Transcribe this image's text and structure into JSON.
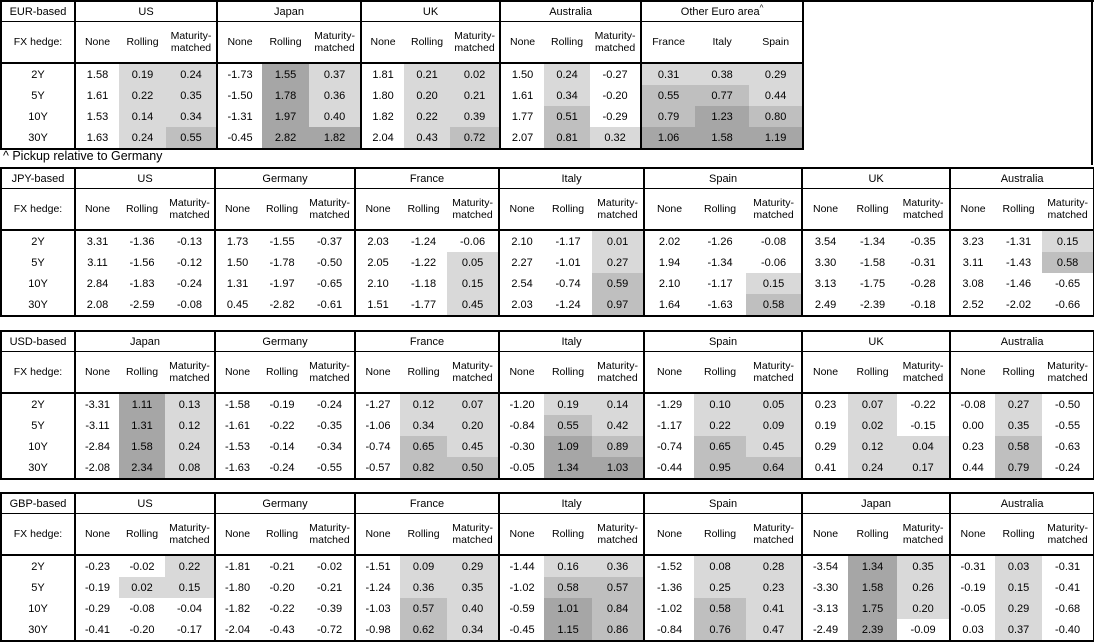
{
  "note": "^ Pickup relative to Germany",
  "hedge_label": "FX hedge:",
  "tenors": [
    "2Y",
    "5Y",
    "10Y",
    "30Y"
  ],
  "hedge_cols": [
    "None",
    "Rolling",
    "Maturity-matched"
  ],
  "colors": {
    "shade_light": "#d9d9d9",
    "shade_medium": "#bfbfbf",
    "shade_dark": "#a6a6a6",
    "border": "#000000"
  },
  "tables": [
    {
      "base": "EUR-based",
      "groups": [
        {
          "name": "US",
          "rows": [
            [
              "1.58",
              "0.19",
              "0.24"
            ],
            [
              "1.61",
              "0.22",
              "0.35"
            ],
            [
              "1.53",
              "0.14",
              "0.34"
            ],
            [
              "1.63",
              "0.24",
              "0.55"
            ]
          ]
        },
        {
          "name": "Japan",
          "rows": [
            [
              "-1.73",
              "1.55",
              "0.37"
            ],
            [
              "-1.50",
              "1.78",
              "0.36"
            ],
            [
              "-1.31",
              "1.97",
              "0.40"
            ],
            [
              "-0.45",
              "2.82",
              "1.82"
            ]
          ]
        },
        {
          "name": "UK",
          "rows": [
            [
              "1.81",
              "0.21",
              "0.02"
            ],
            [
              "1.80",
              "0.20",
              "0.21"
            ],
            [
              "1.82",
              "0.22",
              "0.39"
            ],
            [
              "2.04",
              "0.43",
              "0.72"
            ]
          ]
        },
        {
          "name": "Australia",
          "rows": [
            [
              "1.50",
              "0.24",
              "-0.27"
            ],
            [
              "1.61",
              "0.34",
              "-0.20"
            ],
            [
              "1.77",
              "0.51",
              "-0.29"
            ],
            [
              "2.07",
              "0.81",
              "0.32"
            ]
          ]
        },
        {
          "name": "Other Euro area",
          "sup": "^",
          "cols": [
            "France",
            "Italy",
            "Spain"
          ],
          "shade_all": true,
          "rows": [
            [
              "0.31",
              "0.38",
              "0.29"
            ],
            [
              "0.55",
              "0.77",
              "0.44"
            ],
            [
              "0.79",
              "1.23",
              "0.80"
            ],
            [
              "1.06",
              "1.58",
              "1.19"
            ]
          ]
        }
      ]
    },
    {
      "base": "JPY-based",
      "groups": [
        {
          "name": "US",
          "rows": [
            [
              "3.31",
              "-1.36",
              "-0.13"
            ],
            [
              "3.11",
              "-1.56",
              "-0.12"
            ],
            [
              "2.84",
              "-1.83",
              "-0.24"
            ],
            [
              "2.08",
              "-2.59",
              "-0.08"
            ]
          ]
        },
        {
          "name": "Germany",
          "rows": [
            [
              "1.73",
              "-1.55",
              "-0.37"
            ],
            [
              "1.50",
              "-1.78",
              "-0.50"
            ],
            [
              "1.31",
              "-1.97",
              "-0.65"
            ],
            [
              "0.45",
              "-2.82",
              "-0.61"
            ]
          ]
        },
        {
          "name": "France",
          "rows": [
            [
              "2.03",
              "-1.24",
              "-0.06"
            ],
            [
              "2.05",
              "-1.22",
              "0.05"
            ],
            [
              "2.10",
              "-1.18",
              "0.15"
            ],
            [
              "1.51",
              "-1.77",
              "0.45"
            ]
          ]
        },
        {
          "name": "Italy",
          "rows": [
            [
              "2.10",
              "-1.17",
              "0.01"
            ],
            [
              "2.27",
              "-1.01",
              "0.27"
            ],
            [
              "2.54",
              "-0.74",
              "0.59"
            ],
            [
              "2.03",
              "-1.24",
              "0.97"
            ]
          ]
        },
        {
          "name": "Spain",
          "rows": [
            [
              "2.02",
              "-1.26",
              "-0.08"
            ],
            [
              "1.94",
              "-1.34",
              "-0.06"
            ],
            [
              "2.10",
              "-1.17",
              "0.15"
            ],
            [
              "1.64",
              "-1.63",
              "0.58"
            ]
          ]
        },
        {
          "name": "UK",
          "rows": [
            [
              "3.54",
              "-1.34",
              "-0.35"
            ],
            [
              "3.30",
              "-1.58",
              "-0.31"
            ],
            [
              "3.13",
              "-1.75",
              "-0.28"
            ],
            [
              "2.49",
              "-2.39",
              "-0.18"
            ]
          ]
        },
        {
          "name": "Australia",
          "rows": [
            [
              "3.23",
              "-1.31",
              "0.15"
            ],
            [
              "3.11",
              "-1.43",
              "0.58"
            ],
            [
              "3.08",
              "-1.46",
              "-0.65"
            ],
            [
              "2.52",
              "-2.02",
              "-0.66"
            ]
          ]
        }
      ]
    },
    {
      "base": "USD-based",
      "groups": [
        {
          "name": "Japan",
          "rows": [
            [
              "-3.31",
              "1.11",
              "0.13"
            ],
            [
              "-3.11",
              "1.31",
              "0.12"
            ],
            [
              "-2.84",
              "1.58",
              "0.24"
            ],
            [
              "-2.08",
              "2.34",
              "0.08"
            ]
          ]
        },
        {
          "name": "Germany",
          "rows": [
            [
              "-1.58",
              "-0.19",
              "-0.24"
            ],
            [
              "-1.61",
              "-0.22",
              "-0.35"
            ],
            [
              "-1.53",
              "-0.14",
              "-0.34"
            ],
            [
              "-1.63",
              "-0.24",
              "-0.55"
            ]
          ]
        },
        {
          "name": "France",
          "rows": [
            [
              "-1.27",
              "0.12",
              "0.07"
            ],
            [
              "-1.06",
              "0.34",
              "0.20"
            ],
            [
              "-0.74",
              "0.65",
              "0.45"
            ],
            [
              "-0.57",
              "0.82",
              "0.50"
            ]
          ]
        },
        {
          "name": "Italy",
          "rows": [
            [
              "-1.20",
              "0.19",
              "0.14"
            ],
            [
              "-0.84",
              "0.55",
              "0.42"
            ],
            [
              "-0.30",
              "1.09",
              "0.89"
            ],
            [
              "-0.05",
              "1.34",
              "1.03"
            ]
          ]
        },
        {
          "name": "Spain",
          "rows": [
            [
              "-1.29",
              "0.10",
              "0.05"
            ],
            [
              "-1.17",
              "0.22",
              "0.09"
            ],
            [
              "-0.74",
              "0.65",
              "0.45"
            ],
            [
              "-0.44",
              "0.95",
              "0.64"
            ]
          ]
        },
        {
          "name": "UK",
          "rows": [
            [
              "0.23",
              "0.07",
              "-0.22"
            ],
            [
              "0.19",
              "0.02",
              "-0.15"
            ],
            [
              "0.29",
              "0.12",
              "0.04"
            ],
            [
              "0.41",
              "0.24",
              "0.17"
            ]
          ]
        },
        {
          "name": "Australia",
          "rows": [
            [
              "-0.08",
              "0.27",
              "-0.50"
            ],
            [
              "0.00",
              "0.35",
              "-0.55"
            ],
            [
              "0.23",
              "0.58",
              "-0.63"
            ],
            [
              "0.44",
              "0.79",
              "-0.24"
            ]
          ]
        }
      ]
    },
    {
      "base": "GBP-based",
      "groups": [
        {
          "name": "US",
          "rows": [
            [
              "-0.23",
              "-0.02",
              "0.22"
            ],
            [
              "-0.19",
              "0.02",
              "0.15"
            ],
            [
              "-0.29",
              "-0.08",
              "-0.04"
            ],
            [
              "-0.41",
              "-0.20",
              "-0.17"
            ]
          ]
        },
        {
          "name": "Germany",
          "rows": [
            [
              "-1.81",
              "-0.21",
              "-0.02"
            ],
            [
              "-1.80",
              "-0.20",
              "-0.21"
            ],
            [
              "-1.82",
              "-0.22",
              "-0.39"
            ],
            [
              "-2.04",
              "-0.43",
              "-0.72"
            ]
          ]
        },
        {
          "name": "France",
          "rows": [
            [
              "-1.51",
              "0.09",
              "0.29"
            ],
            [
              "-1.24",
              "0.36",
              "0.35"
            ],
            [
              "-1.03",
              "0.57",
              "0.40"
            ],
            [
              "-0.98",
              "0.62",
              "0.34"
            ]
          ]
        },
        {
          "name": "Italy",
          "rows": [
            [
              "-1.44",
              "0.16",
              "0.36"
            ],
            [
              "-1.02",
              "0.58",
              "0.57"
            ],
            [
              "-0.59",
              "1.01",
              "0.84"
            ],
            [
              "-0.45",
              "1.15",
              "0.86"
            ]
          ]
        },
        {
          "name": "Spain",
          "rows": [
            [
              "-1.52",
              "0.08",
              "0.28"
            ],
            [
              "-1.36",
              "0.25",
              "0.23"
            ],
            [
              "-1.02",
              "0.58",
              "0.41"
            ],
            [
              "-0.84",
              "0.76",
              "0.47"
            ]
          ]
        },
        {
          "name": "Japan",
          "rows": [
            [
              "-3.54",
              "1.34",
              "0.35"
            ],
            [
              "-3.30",
              "1.58",
              "0.26"
            ],
            [
              "-3.13",
              "1.75",
              "0.20"
            ],
            [
              "-2.49",
              "2.39",
              "-0.09"
            ]
          ]
        },
        {
          "name": "Australia",
          "rows": [
            [
              "-0.31",
              "0.03",
              "-0.31"
            ],
            [
              "-0.19",
              "0.15",
              "-0.41"
            ],
            [
              "-0.05",
              "0.29",
              "-0.68"
            ],
            [
              "0.03",
              "0.37",
              "-0.40"
            ]
          ]
        }
      ]
    }
  ]
}
